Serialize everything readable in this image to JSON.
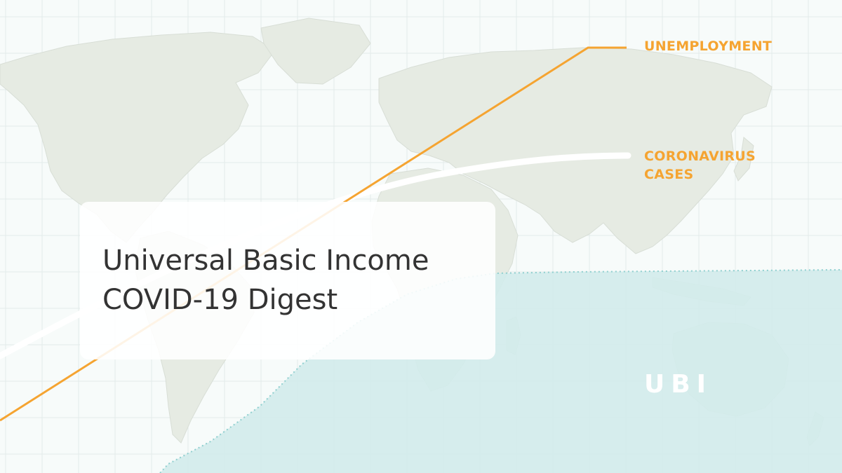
{
  "title": {
    "line1": "Universal Basic Income",
    "line2": "COVID-19 Digest"
  },
  "labels": {
    "unemployment": "UNEMPLOYMENT",
    "coronavirus_cases": "CORONAVIRUS\nCASES",
    "ubi": "UBI"
  },
  "colors": {
    "background": "#f7fbfa",
    "land": "#e6ebe3",
    "grid": "#e3ebea",
    "ubi_region": "#d3ecec",
    "ubi_border": "#8fcfcf",
    "accent_orange": "#f5a431",
    "white_line": "#ffffff",
    "title_text": "#333333"
  },
  "icons": {
    "background_graphic": "world-map-icon"
  }
}
